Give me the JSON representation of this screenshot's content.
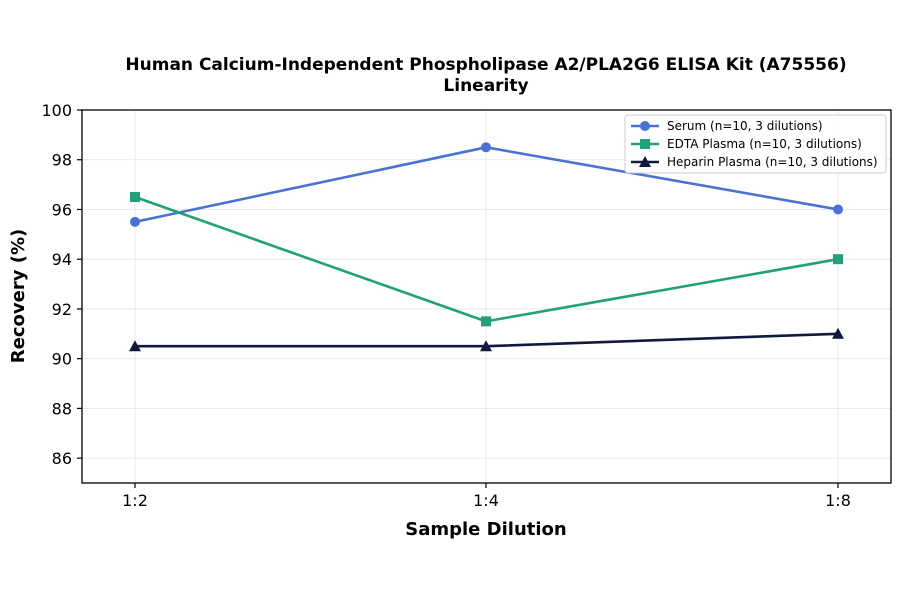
{
  "chart_data": {
    "type": "line",
    "title_line1": "Human Calcium-Independent Phospholipase A2/PLA2G6 ELISA Kit (A75556)",
    "title_line2": "Linearity",
    "xlabel": "Sample Dilution",
    "ylabel": "Recovery (%)",
    "categories": [
      "1:2",
      "1:4",
      "1:8"
    ],
    "ylim": [
      85,
      100
    ],
    "yticks": [
      86,
      88,
      90,
      92,
      94,
      96,
      98,
      100
    ],
    "grid": true,
    "legend_position": "top-right",
    "series": [
      {
        "name": "Serum (n=10, 3 dilutions)",
        "values": [
          95.5,
          98.5,
          96.0
        ],
        "color": "#4a72d1",
        "marker": "circle"
      },
      {
        "name": "EDTA Plasma (n=10, 3 dilutions)",
        "values": [
          96.5,
          91.5,
          94.0
        ],
        "color": "#22a07a",
        "marker": "square"
      },
      {
        "name": "Heparin Plasma (n=10, 3 dilutions)",
        "values": [
          90.5,
          90.5,
          91.0
        ],
        "color": "#0f1a3d",
        "marker": "triangle"
      }
    ]
  }
}
